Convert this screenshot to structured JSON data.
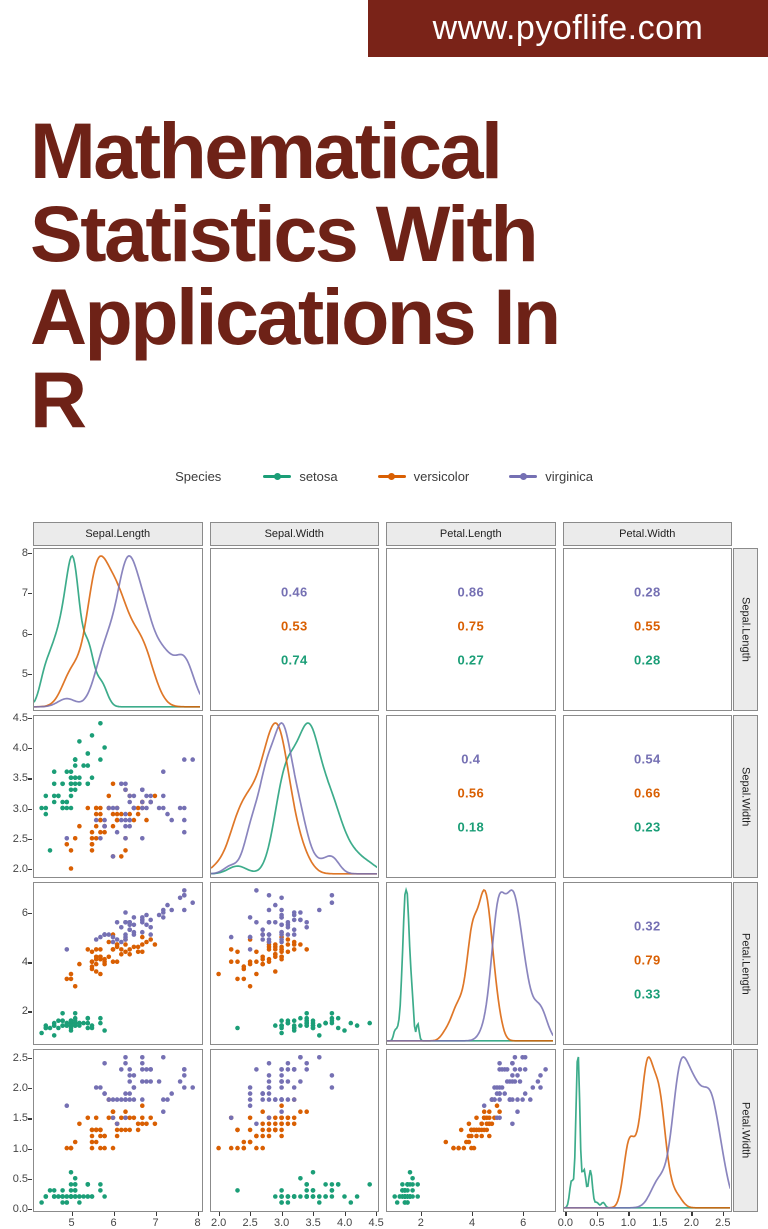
{
  "banner": {
    "url_label": "www.pyoflife.com",
    "bg_color": "#7a2318"
  },
  "title": {
    "text": "Mathematical Statistics With Applications In R",
    "lines": [
      "Mathematical",
      "Statistics With",
      "Applications In",
      "R"
    ],
    "color": "#6e2217"
  },
  "legend": {
    "title": "Species",
    "position": "top",
    "items": [
      {
        "label": "setosa",
        "color": "#1b9e77"
      },
      {
        "label": "versicolor",
        "color": "#d95f02"
      },
      {
        "label": "virginica",
        "color": "#7570b3"
      }
    ]
  },
  "chart_data": {
    "type": "scatter",
    "subtype": "pairs-matrix",
    "title": "iris pairs plot (ggpairs): density diagonal, scatter lower triangle, per-species correlations upper triangle",
    "grid": "off",
    "variables": [
      "Sepal.Length",
      "Sepal.Width",
      "Petal.Length",
      "Petal.Width"
    ],
    "axes": {
      "Sepal.Length": {
        "domain": [
          4.12,
          8.08
        ],
        "ticks": [
          5,
          6,
          7,
          8
        ],
        "tick_labels": [
          "5",
          "6",
          "7",
          "8"
        ]
      },
      "Sepal.Width": {
        "domain": [
          1.88,
          4.52
        ],
        "ticks": [
          2.0,
          2.5,
          3.0,
          3.5,
          4.0,
          4.5
        ],
        "tick_labels": [
          "2.0",
          "2.5",
          "3.0",
          "3.5",
          "4.0",
          "4.5"
        ]
      },
      "Petal.Length": {
        "domain": [
          0.7,
          7.2
        ],
        "ticks": [
          2,
          4,
          6
        ],
        "tick_labels": [
          "2",
          "4",
          "6"
        ]
      },
      "Petal.Width": {
        "domain": [
          -0.02,
          2.62
        ],
        "ticks": [
          0.0,
          0.5,
          1.0,
          1.5,
          2.0,
          2.5
        ],
        "tick_labels": [
          "0.0",
          "0.5",
          "1.0",
          "1.5",
          "2.0",
          "2.5"
        ]
      }
    },
    "correlations": {
      "Sepal.Length|Sepal.Width": [
        {
          "species": "virginica",
          "value": "0.46"
        },
        {
          "species": "versicolor",
          "value": "0.53"
        },
        {
          "species": "setosa",
          "value": "0.74"
        }
      ],
      "Sepal.Length|Petal.Length": [
        {
          "species": "virginica",
          "value": "0.86"
        },
        {
          "species": "versicolor",
          "value": "0.75"
        },
        {
          "species": "setosa",
          "value": "0.27"
        }
      ],
      "Sepal.Length|Petal.Width": [
        {
          "species": "virginica",
          "value": "0.28"
        },
        {
          "species": "versicolor",
          "value": "0.55"
        },
        {
          "species": "setosa",
          "value": "0.28"
        }
      ],
      "Sepal.Width|Petal.Length": [
        {
          "species": "virginica",
          "value": "0.4"
        },
        {
          "species": "versicolor",
          "value": "0.56"
        },
        {
          "species": "setosa",
          "value": "0.18"
        }
      ],
      "Sepal.Width|Petal.Width": [
        {
          "species": "virginica",
          "value": "0.54"
        },
        {
          "species": "versicolor",
          "value": "0.66"
        },
        {
          "species": "setosa",
          "value": "0.23"
        }
      ],
      "Petal.Length|Petal.Width": [
        {
          "species": "virginica",
          "value": "0.32"
        },
        {
          "species": "versicolor",
          "value": "0.79"
        },
        {
          "species": "setosa",
          "value": "0.33"
        }
      ]
    },
    "points": {
      "setosa": [
        [
          5.1,
          3.5,
          1.4,
          0.2
        ],
        [
          4.9,
          3.0,
          1.4,
          0.2
        ],
        [
          4.7,
          3.2,
          1.3,
          0.2
        ],
        [
          4.6,
          3.1,
          1.5,
          0.2
        ],
        [
          5.0,
          3.6,
          1.4,
          0.2
        ],
        [
          5.4,
          3.9,
          1.7,
          0.4
        ],
        [
          4.6,
          3.4,
          1.4,
          0.3
        ],
        [
          5.0,
          3.4,
          1.5,
          0.2
        ],
        [
          4.4,
          2.9,
          1.4,
          0.2
        ],
        [
          4.9,
          3.1,
          1.5,
          0.1
        ],
        [
          5.4,
          3.7,
          1.5,
          0.2
        ],
        [
          4.8,
          3.4,
          1.6,
          0.2
        ],
        [
          4.8,
          3.0,
          1.4,
          0.1
        ],
        [
          4.3,
          3.0,
          1.1,
          0.1
        ],
        [
          5.8,
          4.0,
          1.2,
          0.2
        ],
        [
          5.7,
          4.4,
          1.5,
          0.4
        ],
        [
          5.4,
          3.9,
          1.3,
          0.4
        ],
        [
          5.1,
          3.5,
          1.4,
          0.3
        ],
        [
          5.7,
          3.8,
          1.7,
          0.3
        ],
        [
          5.1,
          3.8,
          1.5,
          0.3
        ],
        [
          5.4,
          3.4,
          1.7,
          0.2
        ],
        [
          5.1,
          3.7,
          1.5,
          0.4
        ],
        [
          4.6,
          3.6,
          1.0,
          0.2
        ],
        [
          5.1,
          3.3,
          1.7,
          0.5
        ],
        [
          4.8,
          3.4,
          1.9,
          0.2
        ],
        [
          5.0,
          3.0,
          1.6,
          0.2
        ],
        [
          5.0,
          3.4,
          1.6,
          0.4
        ],
        [
          5.2,
          3.5,
          1.5,
          0.2
        ],
        [
          5.2,
          3.4,
          1.4,
          0.2
        ],
        [
          4.7,
          3.2,
          1.6,
          0.2
        ],
        [
          4.8,
          3.1,
          1.6,
          0.2
        ],
        [
          5.4,
          3.4,
          1.5,
          0.4
        ],
        [
          5.2,
          4.1,
          1.5,
          0.1
        ],
        [
          5.5,
          4.2,
          1.4,
          0.2
        ],
        [
          4.9,
          3.1,
          1.5,
          0.2
        ],
        [
          5.0,
          3.2,
          1.2,
          0.2
        ],
        [
          5.5,
          3.5,
          1.3,
          0.2
        ],
        [
          4.9,
          3.6,
          1.4,
          0.1
        ],
        [
          4.4,
          3.0,
          1.3,
          0.2
        ],
        [
          5.1,
          3.4,
          1.5,
          0.2
        ],
        [
          5.0,
          3.5,
          1.3,
          0.3
        ],
        [
          4.5,
          2.3,
          1.3,
          0.3
        ],
        [
          4.4,
          3.2,
          1.3,
          0.2
        ],
        [
          5.0,
          3.5,
          1.6,
          0.6
        ],
        [
          5.1,
          3.8,
          1.9,
          0.4
        ],
        [
          4.8,
          3.0,
          1.4,
          0.3
        ],
        [
          5.1,
          3.8,
          1.6,
          0.2
        ],
        [
          4.6,
          3.2,
          1.4,
          0.2
        ],
        [
          5.3,
          3.7,
          1.5,
          0.2
        ],
        [
          5.0,
          3.3,
          1.4,
          0.2
        ]
      ],
      "versicolor": [
        [
          7.0,
          3.2,
          4.7,
          1.4
        ],
        [
          6.4,
          3.2,
          4.5,
          1.5
        ],
        [
          6.9,
          3.1,
          4.9,
          1.5
        ],
        [
          5.5,
          2.3,
          4.0,
          1.3
        ],
        [
          6.5,
          2.8,
          4.6,
          1.5
        ],
        [
          5.7,
          2.8,
          4.5,
          1.3
        ],
        [
          6.3,
          3.3,
          4.7,
          1.6
        ],
        [
          4.9,
          2.4,
          3.3,
          1.0
        ],
        [
          6.6,
          2.9,
          4.6,
          1.3
        ],
        [
          5.2,
          2.7,
          3.9,
          1.4
        ],
        [
          5.0,
          2.0,
          3.5,
          1.0
        ],
        [
          5.9,
          3.0,
          4.2,
          1.5
        ],
        [
          6.0,
          2.2,
          4.0,
          1.0
        ],
        [
          6.1,
          2.9,
          4.7,
          1.4
        ],
        [
          5.6,
          2.9,
          3.6,
          1.3
        ],
        [
          6.7,
          3.1,
          4.4,
          1.4
        ],
        [
          5.6,
          3.0,
          4.5,
          1.5
        ],
        [
          5.8,
          2.7,
          4.1,
          1.0
        ],
        [
          6.2,
          2.2,
          4.5,
          1.5
        ],
        [
          5.6,
          2.5,
          3.9,
          1.1
        ],
        [
          5.9,
          3.2,
          4.8,
          1.8
        ],
        [
          6.1,
          2.8,
          4.0,
          1.3
        ],
        [
          6.3,
          2.5,
          4.9,
          1.5
        ],
        [
          6.1,
          2.8,
          4.7,
          1.2
        ],
        [
          6.4,
          2.9,
          4.3,
          1.3
        ],
        [
          6.6,
          3.0,
          4.4,
          1.4
        ],
        [
          6.8,
          2.8,
          4.8,
          1.4
        ],
        [
          6.7,
          3.0,
          5.0,
          1.7
        ],
        [
          6.0,
          2.9,
          4.5,
          1.5
        ],
        [
          5.7,
          2.6,
          3.5,
          1.0
        ],
        [
          5.5,
          2.4,
          3.8,
          1.1
        ],
        [
          5.5,
          2.4,
          3.7,
          1.0
        ],
        [
          5.8,
          2.7,
          3.9,
          1.2
        ],
        [
          6.0,
          2.7,
          5.1,
          1.6
        ],
        [
          5.4,
          3.0,
          4.5,
          1.5
        ],
        [
          6.0,
          3.4,
          4.5,
          1.6
        ],
        [
          6.7,
          3.1,
          4.7,
          1.5
        ],
        [
          6.3,
          2.3,
          4.4,
          1.3
        ],
        [
          5.6,
          3.0,
          4.1,
          1.3
        ],
        [
          5.5,
          2.5,
          4.0,
          1.3
        ],
        [
          5.5,
          2.6,
          4.4,
          1.2
        ],
        [
          6.1,
          3.0,
          4.6,
          1.4
        ],
        [
          5.8,
          2.6,
          4.0,
          1.2
        ],
        [
          5.0,
          2.3,
          3.3,
          1.0
        ],
        [
          5.6,
          2.7,
          4.2,
          1.3
        ],
        [
          5.7,
          3.0,
          4.2,
          1.2
        ],
        [
          5.7,
          2.9,
          4.2,
          1.3
        ],
        [
          6.2,
          2.9,
          4.3,
          1.3
        ],
        [
          5.1,
          2.5,
          3.0,
          1.1
        ],
        [
          5.7,
          2.8,
          4.1,
          1.3
        ]
      ],
      "virginica": [
        [
          6.3,
          3.3,
          6.0,
          2.5
        ],
        [
          5.8,
          2.7,
          5.1,
          1.9
        ],
        [
          7.1,
          3.0,
          5.9,
          2.1
        ],
        [
          6.3,
          2.9,
          5.6,
          1.8
        ],
        [
          6.5,
          3.0,
          5.8,
          2.2
        ],
        [
          7.6,
          3.0,
          6.6,
          2.1
        ],
        [
          4.9,
          2.5,
          4.5,
          1.7
        ],
        [
          7.3,
          2.9,
          6.3,
          1.8
        ],
        [
          6.7,
          2.5,
          5.8,
          1.8
        ],
        [
          7.2,
          3.6,
          6.1,
          2.5
        ],
        [
          6.5,
          3.2,
          5.1,
          2.0
        ],
        [
          6.4,
          2.7,
          5.3,
          1.9
        ],
        [
          6.8,
          3.0,
          5.5,
          2.1
        ],
        [
          5.7,
          2.5,
          5.0,
          2.0
        ],
        [
          5.8,
          2.8,
          5.1,
          2.4
        ],
        [
          6.4,
          3.2,
          5.3,
          2.3
        ],
        [
          6.5,
          3.0,
          5.5,
          1.8
        ],
        [
          7.7,
          3.8,
          6.7,
          2.2
        ],
        [
          7.7,
          2.6,
          6.9,
          2.3
        ],
        [
          6.0,
          2.2,
          5.0,
          1.5
        ],
        [
          6.9,
          3.2,
          5.7,
          2.3
        ],
        [
          5.6,
          2.8,
          4.9,
          2.0
        ],
        [
          7.7,
          2.8,
          6.7,
          2.0
        ],
        [
          6.3,
          2.7,
          4.9,
          1.8
        ],
        [
          6.7,
          3.3,
          5.7,
          2.1
        ],
        [
          7.2,
          3.2,
          6.0,
          1.8
        ],
        [
          6.2,
          2.8,
          4.8,
          1.8
        ],
        [
          6.1,
          3.0,
          4.9,
          1.8
        ],
        [
          6.4,
          2.8,
          5.6,
          2.1
        ],
        [
          7.2,
          3.0,
          5.8,
          1.6
        ],
        [
          7.4,
          2.8,
          6.1,
          1.9
        ],
        [
          7.9,
          3.8,
          6.4,
          2.0
        ],
        [
          6.4,
          2.8,
          5.6,
          2.2
        ],
        [
          6.3,
          2.8,
          5.1,
          1.5
        ],
        [
          6.1,
          2.6,
          5.6,
          1.4
        ],
        [
          7.7,
          3.0,
          6.1,
          2.3
        ],
        [
          6.3,
          3.4,
          5.6,
          2.4
        ],
        [
          6.4,
          3.1,
          5.5,
          1.8
        ],
        [
          6.0,
          3.0,
          4.8,
          1.8
        ],
        [
          6.9,
          3.1,
          5.4,
          2.1
        ],
        [
          6.7,
          3.1,
          5.6,
          2.4
        ],
        [
          6.9,
          3.1,
          5.1,
          2.3
        ],
        [
          5.8,
          2.7,
          5.1,
          1.9
        ],
        [
          6.8,
          3.2,
          5.9,
          2.3
        ],
        [
          6.7,
          3.3,
          5.7,
          2.5
        ],
        [
          6.7,
          3.0,
          5.2,
          2.3
        ],
        [
          6.3,
          2.5,
          5.0,
          1.9
        ],
        [
          6.5,
          3.0,
          5.2,
          2.0
        ],
        [
          6.2,
          3.4,
          5.4,
          2.3
        ],
        [
          5.9,
          3.0,
          5.1,
          1.8
        ]
      ]
    }
  }
}
